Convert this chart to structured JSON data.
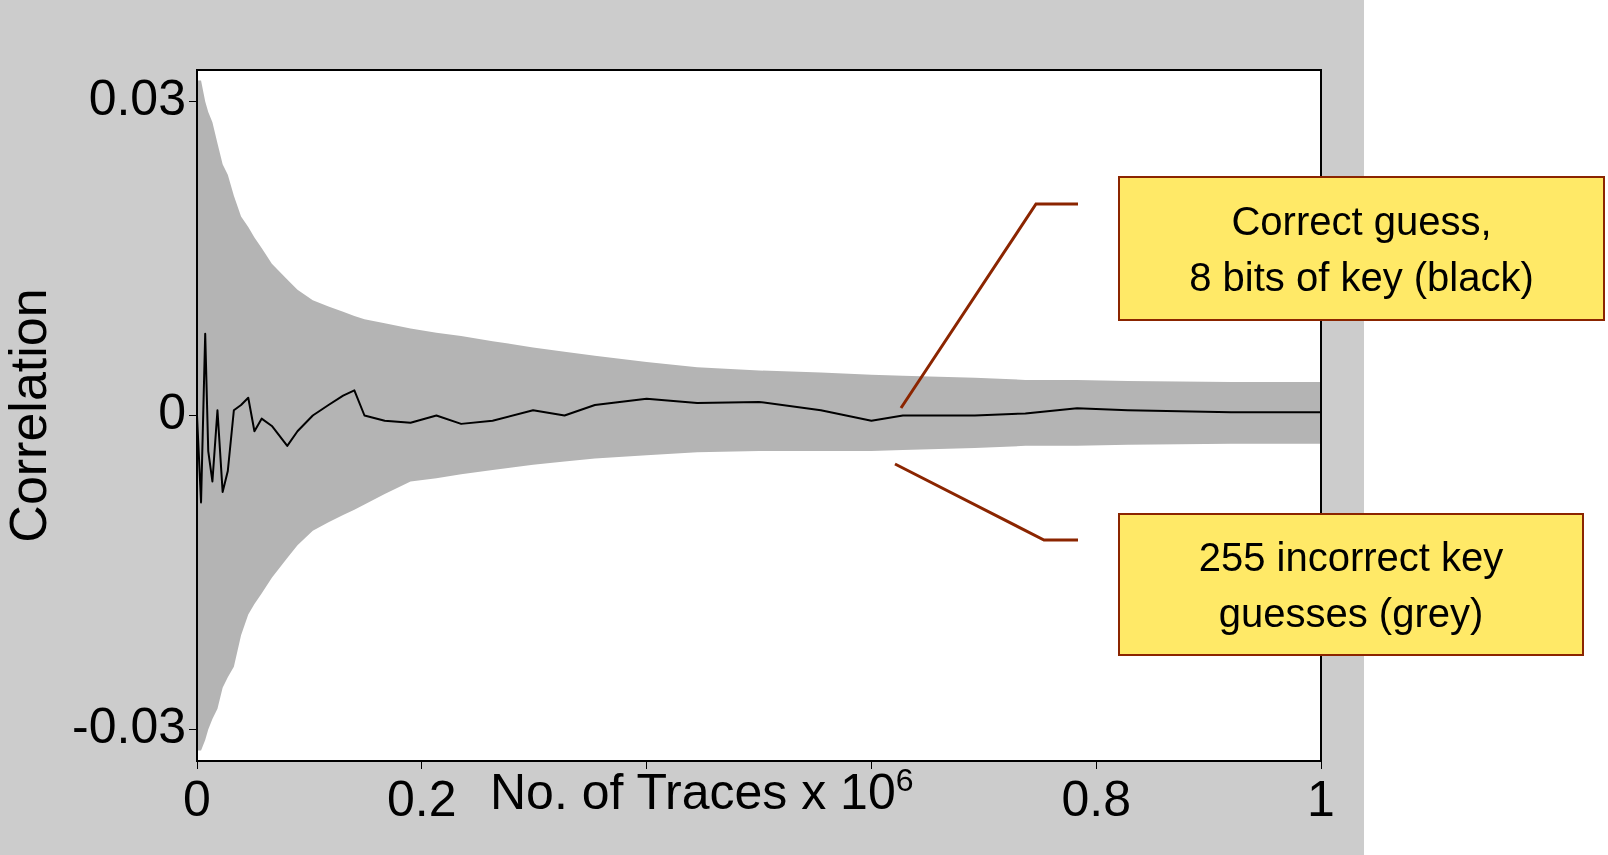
{
  "chart_data": {
    "type": "line",
    "xlabel": "No. of Traces x 10$^{6}$",
    "ylabel": "Correlation",
    "xlim": [
      0,
      1
    ],
    "xticks": [
      0,
      0.2,
      {
        "value": 0.4,
        "label": null
      },
      {
        "value": 0.6,
        "label": null
      },
      0.8,
      1
    ],
    "ylim": [
      -0.033,
      0.033
    ],
    "yticks": [
      -0.03,
      0,
      0.03
    ],
    "legend": false,
    "marker": "none",
    "line_style": "solid",
    "annotations": [
      "Correct guess,\n8 bits of key (black)",
      "255 incorrect key guesses (grey)"
    ],
    "series": [
      {
        "color": "#000000",
        "x": [
          0,
          0.0036,
          0.0073,
          0.01,
          0.0137,
          0.0182,
          0.0228,
          0.0274,
          0.0328,
          0.0392,
          0.0456,
          0.0511,
          0.0575,
          0.0666,
          0.0803,
          0.0894,
          0.103,
          0.117,
          0.13,
          0.14,
          0.149,
          0.167,
          0.19,
          0.213,
          0.235,
          0.263,
          0.299,
          0.327,
          0.354,
          0.4,
          0.445,
          0.5,
          0.555,
          0.6,
          0.628,
          0.692,
          0.737,
          0.783,
          0.828,
          0.92,
          1
        ],
        "values": [
          0,
          -0.0083,
          0.0078,
          -0.0034,
          -0.0063,
          0.0005,
          -0.0073,
          -0.0053,
          0.0005,
          0.001,
          0.0017,
          -0.0015,
          -0.0003,
          -0.001,
          -0.0029,
          -0.0015,
          0,
          0.001,
          0.0019,
          0.0024,
          0,
          -0.0005,
          -0.0007,
          0,
          -0.0008,
          -0.0005,
          0.0005,
          0,
          0.001,
          0.0016,
          0.0012,
          0.0013,
          0.0005,
          -0.0005,
          0,
          0,
          0.0002,
          0.0007,
          0.0005,
          0.0003,
          0.0003
        ],
        "upper": [
          0.032,
          0.032,
          0.03,
          0.029,
          0.028,
          0.026,
          0.024,
          0.023,
          0.021,
          0.019,
          0.018,
          0.017,
          0.016,
          0.0145,
          0.013,
          0.012,
          0.011,
          0.0104,
          0.0099,
          0.0095,
          0.0092,
          0.0088,
          0.0083,
          0.0079,
          0.0076,
          0.0071,
          0.0065,
          0.0061,
          0.0057,
          0.0051,
          0.0046,
          0.0043,
          0.0041,
          0.0039,
          0.0038,
          0.0036,
          0.0034,
          0.0034,
          0.0033,
          0.0032,
          0.0032
        ],
        "lower": [
          -0.032,
          -0.032,
          -0.031,
          -0.03,
          -0.029,
          -0.028,
          -0.026,
          -0.025,
          -0.024,
          -0.021,
          -0.019,
          -0.018,
          -0.017,
          -0.0155,
          -0.0136,
          -0.0124,
          -0.011,
          -0.0102,
          -0.0095,
          -0.009,
          -0.0085,
          -0.0075,
          -0.0063,
          -0.006,
          -0.0056,
          -0.0052,
          -0.0047,
          -0.0044,
          -0.0041,
          -0.0038,
          -0.0035,
          -0.0034,
          -0.0034,
          -0.0034,
          -0.0033,
          -0.0031,
          -0.0029,
          -0.0029,
          -0.0028,
          -0.0027,
          -0.0027
        ]
      }
    ]
  }
}
